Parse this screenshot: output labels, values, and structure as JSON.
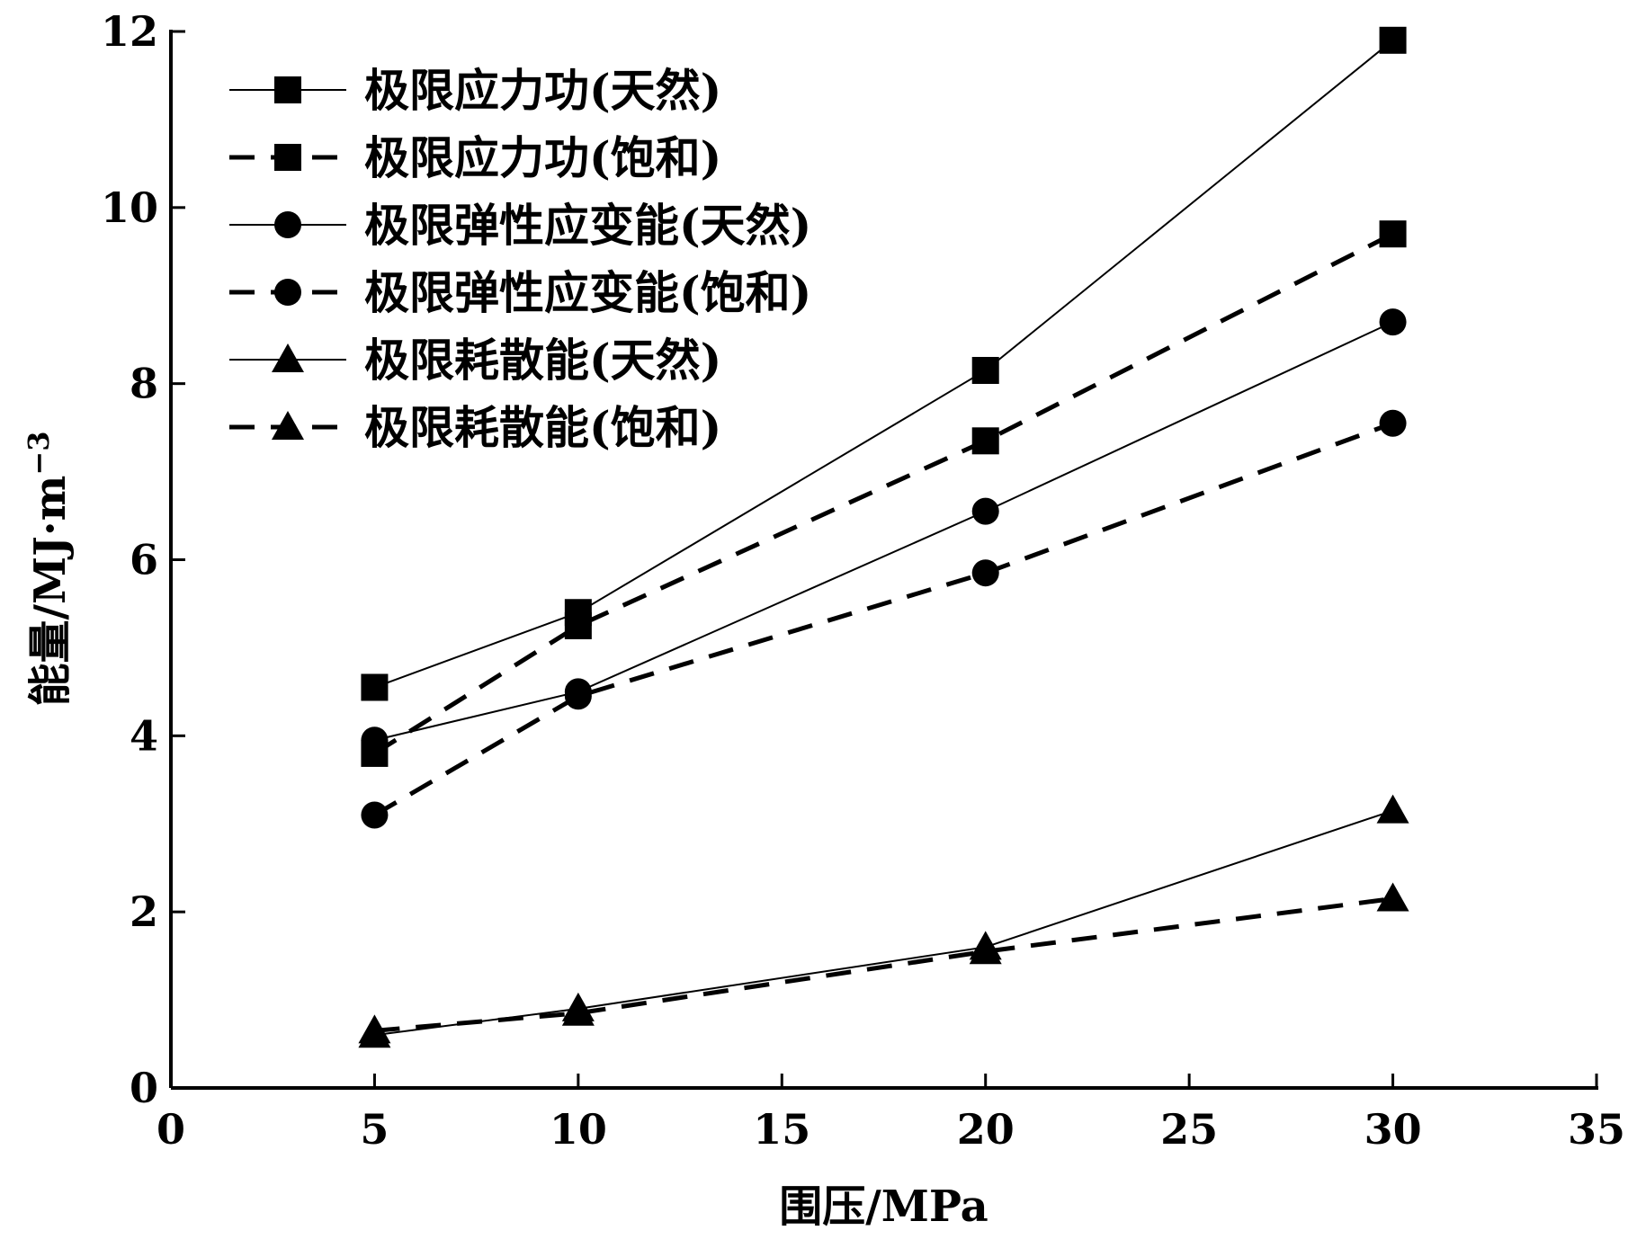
{
  "chart_data": {
    "type": "line",
    "title": "",
    "xlabel": "围压/MPa",
    "ylabel": "能量/MJ·m",
    "ylabel_superscript": "−3",
    "xlim": [
      0,
      35
    ],
    "ylim": [
      0,
      12
    ],
    "x_ticks": [
      "0",
      "5",
      "10",
      "15",
      "20",
      "25",
      "30",
      "35"
    ],
    "y_ticks": [
      "0",
      "2",
      "4",
      "6",
      "8",
      "10",
      "12"
    ],
    "grid": false,
    "legend_position": "top-left",
    "x": [
      5,
      10,
      20,
      30
    ],
    "series": [
      {
        "name": "极限应力功(天然)",
        "marker": "square",
        "line": "solid",
        "values": [
          4.55,
          5.4,
          8.15,
          11.9
        ]
      },
      {
        "name": "极限应力功(饱和)",
        "marker": "square",
        "line": "dashed",
        "values": [
          3.8,
          5.25,
          7.35,
          9.7
        ]
      },
      {
        "name": "极限弹性应变能(天然)",
        "marker": "circle",
        "line": "solid",
        "values": [
          3.95,
          4.5,
          6.55,
          8.7
        ]
      },
      {
        "name": "极限弹性应变能(饱和)",
        "marker": "circle",
        "line": "dashed",
        "values": [
          3.1,
          4.45,
          5.85,
          7.55
        ]
      },
      {
        "name": "极限耗散能(天然)",
        "marker": "triangle",
        "line": "solid",
        "values": [
          0.6,
          0.9,
          1.6,
          3.15
        ]
      },
      {
        "name": "极限耗散能(饱和)",
        "marker": "triangle",
        "line": "dashed",
        "values": [
          0.65,
          0.85,
          1.55,
          2.15
        ]
      }
    ]
  }
}
